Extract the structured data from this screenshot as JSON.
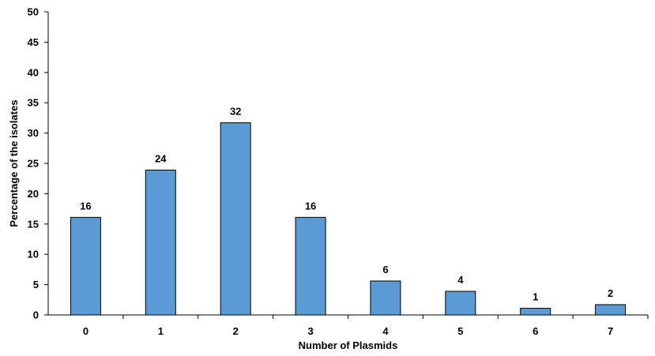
{
  "chart_data": {
    "type": "bar",
    "categories": [
      "0",
      "1",
      "2",
      "3",
      "4",
      "5",
      "6",
      "7"
    ],
    "values": [
      16,
      24,
      32,
      16,
      6,
      4,
      1,
      2
    ],
    "bar_values": [
      16.1,
      23.9,
      31.7,
      16.1,
      5.6,
      3.9,
      1.1,
      1.7
    ],
    "data_labels": [
      "16",
      "24",
      "32",
      "16",
      "6",
      "4",
      "1",
      "2"
    ],
    "xlabel": "Number of Plasmids",
    "ylabel": "Percentage of the isolates",
    "ylim": [
      0,
      50
    ],
    "yticks": [
      "0",
      "5",
      "10",
      "15",
      "20",
      "25",
      "30",
      "35",
      "40",
      "45",
      "50"
    ],
    "bar_color": "#5b9bd5",
    "bar_edge_color": "#000000",
    "grid": false,
    "legend": "none"
  }
}
